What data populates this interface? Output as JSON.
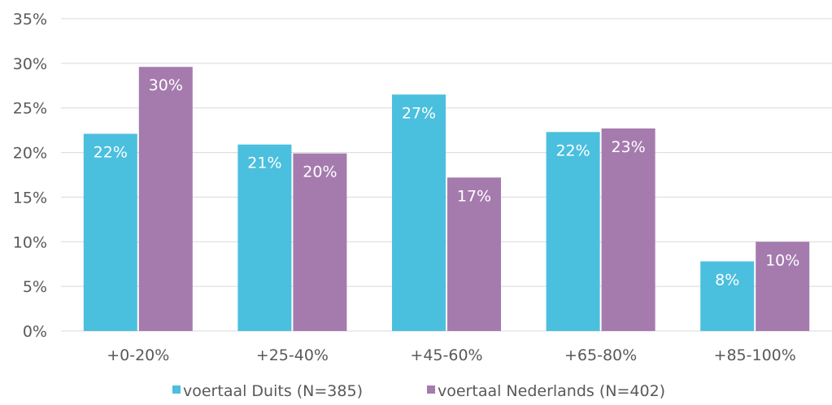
{
  "chart_data": {
    "type": "bar",
    "title": "",
    "xlabel": "",
    "ylabel": "",
    "categories": [
      "+0-20%",
      "+25-40%",
      "+45-60%",
      "+65-80%",
      "+85-100%"
    ],
    "series": [
      {
        "name": "voertaal Duits (N=385)",
        "color": "#4BBFDE",
        "values": [
          22.1,
          20.9,
          26.5,
          22.3,
          7.8
        ],
        "labels": [
          "22%",
          "21%",
          "27%",
          "22%",
          "8%"
        ]
      },
      {
        "name": "voertaal Nederlands (N=402)",
        "color": "#A57BAE",
        "values": [
          29.6,
          19.9,
          17.2,
          22.7,
          10.0
        ],
        "labels": [
          "30%",
          "20%",
          "17%",
          "23%",
          "10%"
        ]
      }
    ],
    "ylim": [
      0,
      35
    ],
    "y_ticks": [
      0,
      5,
      10,
      15,
      20,
      25,
      30,
      35
    ],
    "y_tick_labels": [
      "0%",
      "5%",
      "10%",
      "15%",
      "20%",
      "25%",
      "30%",
      "35%"
    ],
    "grid": true,
    "legend_position": "bottom",
    "gridline_color": "#D9D9D9"
  }
}
